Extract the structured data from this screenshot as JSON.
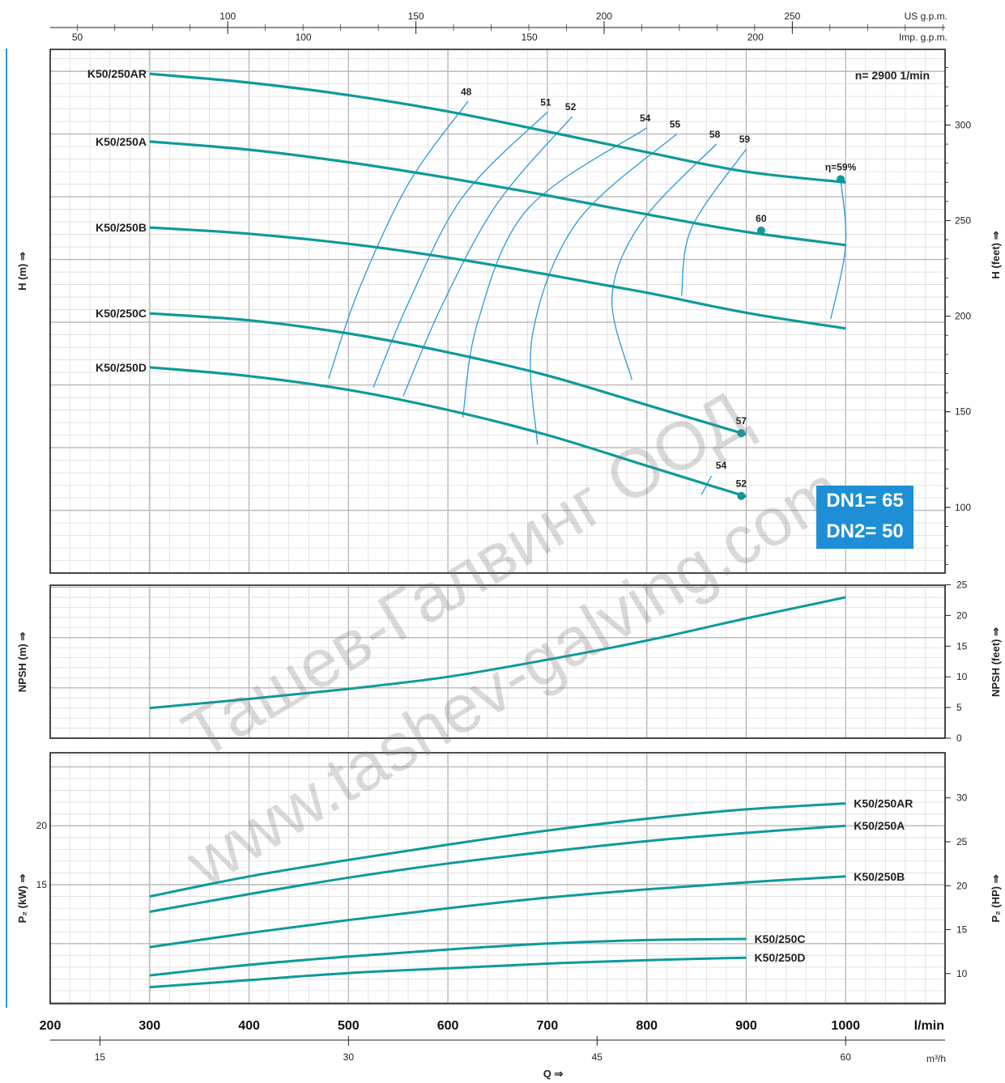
{
  "chart_data": {
    "type": "line",
    "speed_note": "n= 2900  1/min",
    "dn_box": {
      "line1": "DN1= 65",
      "line2": "DN2= 50"
    },
    "watermarks": [
      "Ташев-Галвинг ООД",
      "www.tashev-galving.com"
    ],
    "x_axis": {
      "title": "Q ⇒",
      "primary_unit": "l/min",
      "primary_ticks": [
        200,
        300,
        400,
        500,
        600,
        700,
        800,
        900,
        1000
      ],
      "m3h_unit": "m³/h",
      "m3h_ticks": [
        15,
        30,
        45,
        60
      ],
      "usgpm_unit": "US g.p.m.",
      "usgpm_ticks": [
        100,
        150,
        200,
        250
      ],
      "impgpm_unit": "Imp. g.p.m.",
      "impgpm_ticks": [
        50,
        100,
        150,
        200
      ],
      "range": [
        200,
        1100
      ]
    },
    "head_panel": {
      "ylabel": "H (m) ⇒",
      "ylabel_right": "H (feet) ⇒",
      "ylim": [
        20,
        103.5
      ],
      "right_ticks_feet": [
        100,
        150,
        200,
        250,
        300
      ],
      "series": [
        {
          "name": "K50/250AR",
          "x": [
            300,
            400,
            500,
            600,
            700,
            800,
            900,
            1000
          ],
          "y": [
            99.6,
            98.2,
            96.2,
            93.6,
            90.4,
            87.1,
            84.0,
            82.3
          ]
        },
        {
          "name": "K50/250A",
          "x": [
            300,
            400,
            500,
            600,
            700,
            800,
            900,
            1000
          ],
          "y": [
            88.8,
            87.5,
            85.5,
            83.0,
            80.2,
            77.2,
            74.4,
            72.3
          ]
        },
        {
          "name": "K50/250B",
          "x": [
            300,
            400,
            500,
            600,
            700,
            800,
            900,
            1000
          ],
          "y": [
            75.1,
            74.1,
            72.5,
            70.3,
            67.6,
            64.7,
            61.5,
            59.0
          ]
        },
        {
          "name": "K50/250C",
          "x": [
            300,
            400,
            500,
            600,
            700,
            800,
            900
          ],
          "y": [
            61.4,
            60.3,
            58.2,
            55.2,
            51.5,
            46.8,
            42.1
          ]
        },
        {
          "name": "K50/250D",
          "x": [
            300,
            400,
            500,
            600,
            700,
            800,
            900
          ],
          "y": [
            52.8,
            51.4,
            49.2,
            46.0,
            42.0,
            37.1,
            32.2
          ]
        }
      ],
      "endpoint_markers": [
        {
          "label": "η=59%",
          "x": 995,
          "y": 82.8
        },
        {
          "label": "60",
          "x": 915,
          "y": 74.6
        },
        {
          "label": "57",
          "x": 895,
          "y": 42.3
        },
        {
          "label": "52",
          "x": 895,
          "y": 32.3
        }
      ],
      "efficiency_curves": [
        {
          "label": "48",
          "points": [
            [
              480,
              51.0
            ],
            [
              510,
              65.0
            ],
            [
              560,
              82.0
            ],
            [
              620,
              95.2
            ]
          ]
        },
        {
          "label": "51",
          "points": [
            [
              525,
              49.6
            ],
            [
              560,
              63.0
            ],
            [
              615,
              80.0
            ],
            [
              700,
              93.5
            ]
          ]
        },
        {
          "label": "52",
          "points": [
            [
              555,
              48.2
            ],
            [
              595,
              63.0
            ],
            [
              650,
              79.0
            ],
            [
              725,
              92.8
            ]
          ]
        },
        {
          "label": "54",
          "points": [
            [
              615,
              44.8
            ],
            [
              630,
              60.0
            ],
            [
              680,
              78.0
            ],
            [
              800,
              91.0
            ]
          ]
        },
        {
          "label": "55",
          "points": [
            [
              690,
              40.5
            ],
            [
              685,
              58.0
            ],
            [
              730,
              76.0
            ],
            [
              830,
              90.0
            ]
          ]
        },
        {
          "label": "58",
          "points": [
            [
              785,
              50.8
            ],
            [
              765,
              64.0
            ],
            [
              795,
              76.0
            ],
            [
              870,
              88.4
            ]
          ]
        },
        {
          "label": "59",
          "points": [
            [
              835,
              64.2
            ],
            [
              845,
              75.0
            ],
            [
              900,
              87.6
            ]
          ]
        }
      ],
      "eta_boundary": [
        [
          995,
          82.8
        ],
        [
          1000,
          72.3
        ],
        [
          985,
          60.5
        ]
      ],
      "d_efficiency_tick": {
        "label": "54",
        "x": [
          855,
          865
        ],
        "y": [
          32.5,
          35.5
        ]
      }
    },
    "npsh_panel": {
      "ylabel": "NPSH (m) ⇒",
      "ylabel_right": "NPSH (feet) ⇒",
      "ylim": [
        0,
        7.6
      ],
      "right_ticks_feet": [
        0,
        5,
        10,
        15,
        20,
        25
      ],
      "series": [
        {
          "name": "",
          "x": [
            300,
            400,
            500,
            600,
            700,
            800,
            900,
            1000
          ],
          "y": [
            1.5,
            1.95,
            2.45,
            3.05,
            3.9,
            4.85,
            5.95,
            7.0
          ]
        }
      ]
    },
    "power_panel": {
      "ylabel": "P₂ (kW) ⇒",
      "ylabel_right": "P₂ (HP) ⇒",
      "ylim": [
        4.9,
        26.2
      ],
      "left_ticks_kw": [
        15,
        20
      ],
      "right_ticks_hp": [
        10,
        15,
        20,
        25,
        30
      ],
      "series": [
        {
          "name": "K50/250AR",
          "x": [
            300,
            400,
            500,
            600,
            700,
            800,
            900,
            1000
          ],
          "y": [
            14.0,
            15.7,
            17.1,
            18.4,
            19.6,
            20.6,
            21.4,
            21.9
          ]
        },
        {
          "name": "K50/250A",
          "x": [
            300,
            400,
            500,
            600,
            700,
            800,
            900,
            1000
          ],
          "y": [
            12.7,
            14.2,
            15.6,
            16.8,
            17.8,
            18.7,
            19.4,
            20.0
          ]
        },
        {
          "name": "K50/250B",
          "x": [
            300,
            400,
            500,
            600,
            700,
            800,
            900,
            1000
          ],
          "y": [
            9.7,
            10.9,
            12.0,
            13.0,
            13.9,
            14.6,
            15.2,
            15.7
          ]
        },
        {
          "name": "K50/250C",
          "x": [
            300,
            400,
            500,
            600,
            700,
            800,
            900
          ],
          "y": [
            7.3,
            8.2,
            8.9,
            9.5,
            10.0,
            10.3,
            10.4
          ]
        },
        {
          "name": "K50/250D",
          "x": [
            300,
            400,
            500,
            600,
            700,
            800,
            900
          ],
          "y": [
            6.3,
            6.9,
            7.5,
            7.9,
            8.3,
            8.6,
            8.8
          ]
        }
      ]
    }
  }
}
